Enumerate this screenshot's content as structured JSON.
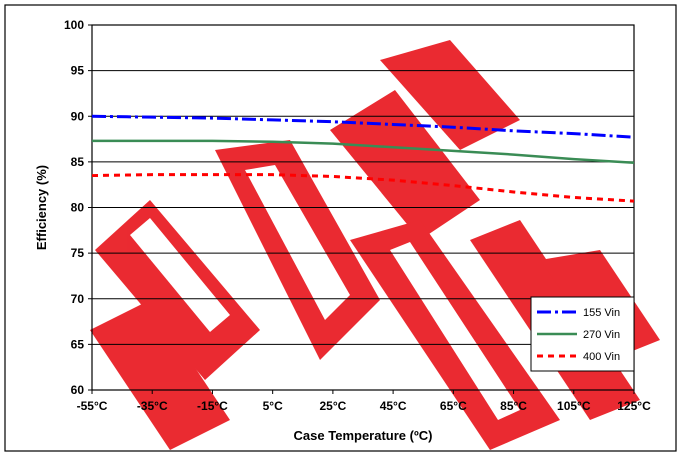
{
  "colors": {
    "background": "#ffffff",
    "plot_background": "#ffffff",
    "watermark": "#e8141b",
    "series_155": "#0000ff",
    "series_270": "#3a8c55",
    "series_400": "#ff0000"
  },
  "chart_data": {
    "type": "line",
    "title": "",
    "xlabel": "Case Temperature (ºC)",
    "ylabel": "Efficiency (%)",
    "x_tick_labels": [
      "-55°C",
      "-35°C",
      "-15°C",
      "5°C",
      "25°C",
      "45°C",
      "65°C",
      "85°C",
      "105°C",
      "125°C"
    ],
    "x": [
      -55,
      -35,
      -15,
      5,
      25,
      45,
      65,
      85,
      105,
      125
    ],
    "xlim": [
      -55,
      125
    ],
    "ylim": [
      60,
      100
    ],
    "y_ticks": [
      60,
      65,
      70,
      75,
      80,
      85,
      90,
      95,
      100
    ],
    "grid": true,
    "legend_position": "bottom-right",
    "series": [
      {
        "name": "155 Vin",
        "style": "dash-dot",
        "color": "#0000ff",
        "values": [
          90.0,
          89.9,
          89.8,
          89.6,
          89.4,
          89.1,
          88.8,
          88.4,
          88.1,
          87.7
        ]
      },
      {
        "name": "270 Vin",
        "style": "solid",
        "color": "#3a8c55",
        "values": [
          87.3,
          87.3,
          87.3,
          87.2,
          87.0,
          86.6,
          86.2,
          85.8,
          85.3,
          84.9
        ]
      },
      {
        "name": "400 Vin",
        "style": "dotted",
        "color": "#ff0000",
        "values": [
          83.5,
          83.6,
          83.6,
          83.6,
          83.4,
          83.0,
          82.4,
          81.7,
          81.1,
          80.7
        ]
      }
    ]
  }
}
